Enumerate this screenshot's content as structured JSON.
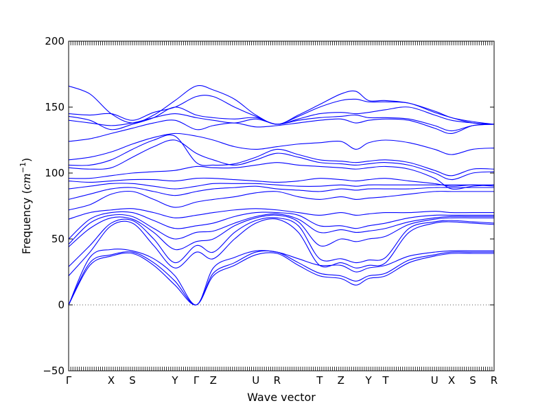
{
  "chart_data": {
    "type": "line",
    "title": "",
    "xlabel": "Wave vector",
    "ylabel_text": "Frequency (",
    "ylabel_unit": "cm",
    "ylabel_exp": "−1",
    "ylabel_close": ")",
    "ylim": [
      -50,
      200
    ],
    "yticks": [
      -50,
      0,
      50,
      100,
      150,
      200
    ],
    "xlim": [
      0,
      20
    ],
    "xticks": [
      {
        "x": 0,
        "label": "Γ"
      },
      {
        "x": 2,
        "label": "X"
      },
      {
        "x": 3,
        "label": "S"
      },
      {
        "x": 5,
        "label": "Y"
      },
      {
        "x": 6,
        "label": "Γ"
      },
      {
        "x": 6.8,
        "label": "Z"
      },
      {
        "x": 8.8,
        "label": "U"
      },
      {
        "x": 9.8,
        "label": "R"
      },
      {
        "x": 11.8,
        "label": "T"
      },
      {
        "x": 12.8,
        "label": "Z"
      },
      {
        "x": 14.1,
        "label": "Y"
      },
      {
        "x": 14.9,
        "label": "T"
      },
      {
        "x": 17.2,
        "label": "U"
      },
      {
        "x": 18,
        "label": "X"
      },
      {
        "x": 19,
        "label": "S"
      },
      {
        "x": 20,
        "label": "R"
      }
    ],
    "zero_line": true,
    "series_color": "#0000ff",
    "zero_line_color": "#555555",
    "series": [
      {
        "x": [
          0,
          1,
          2,
          3,
          4,
          5,
          6,
          6.8,
          7.8,
          8.8,
          9.8,
          10.8,
          11.8,
          12.8,
          13.5,
          14.1,
          14.9,
          16,
          17.2,
          18,
          19,
          20
        ],
        "values": [
          0,
          30,
          37,
          39,
          30,
          15,
          0,
          22,
          30,
          38,
          39,
          30,
          22,
          20,
          15,
          20,
          22,
          32,
          37,
          39,
          39,
          39
        ]
      },
      {
        "x": [
          0,
          1,
          2,
          3,
          4,
          5,
          6,
          6.8,
          7.8,
          8.8,
          9.8,
          10.8,
          11.8,
          12.8,
          13.5,
          14.1,
          14.9,
          16,
          17.2,
          18,
          19,
          20
        ],
        "values": [
          0,
          32,
          38,
          40,
          32,
          18,
          0,
          24,
          32,
          40,
          40,
          32,
          24,
          22,
          18,
          22,
          24,
          34,
          38,
          40,
          40,
          40
        ]
      },
      {
        "x": [
          0,
          1,
          2,
          3,
          4,
          5,
          6,
          6.8,
          7.8,
          8.8,
          9.8,
          10.8,
          11.8,
          12.8,
          13.5,
          14.1,
          14.9,
          16,
          17.2,
          18,
          19,
          20
        ],
        "values": [
          0,
          36,
          42,
          41,
          35,
          22,
          0,
          28,
          36,
          41,
          40,
          35,
          30,
          30,
          25,
          28,
          30,
          37,
          40,
          41,
          41,
          41
        ]
      },
      {
        "x": [
          0,
          1,
          2,
          3,
          4,
          5,
          6,
          6.8,
          7.8,
          8.8,
          9.8,
          10.8,
          11.8,
          12.8,
          13.5,
          14.1,
          14.9,
          16,
          17.2,
          18,
          19,
          20
        ],
        "values": [
          22,
          40,
          60,
          62,
          45,
          28,
          40,
          35,
          50,
          62,
          65,
          55,
          30,
          32,
          28,
          30,
          32,
          55,
          62,
          63,
          62,
          61
        ]
      },
      {
        "x": [
          0,
          1,
          2,
          3,
          4,
          5,
          6,
          6.8,
          7.8,
          8.8,
          9.8,
          10.8,
          11.8,
          12.8,
          13.5,
          14.1,
          14.9,
          16,
          17.2,
          18,
          19,
          20
        ],
        "values": [
          29,
          45,
          62,
          64,
          50,
          32,
          45,
          40,
          55,
          64,
          66,
          60,
          35,
          35,
          32,
          34,
          36,
          58,
          63,
          64,
          63,
          62
        ]
      },
      {
        "x": [
          0,
          1,
          2,
          3,
          4,
          5,
          6,
          6.8,
          7.8,
          8.8,
          9.8,
          10.8,
          11.8,
          12.8,
          13.5,
          14.1,
          14.9,
          16,
          17.2,
          18,
          19,
          20
        ],
        "values": [
          44,
          58,
          66,
          65,
          55,
          42,
          48,
          50,
          60,
          66,
          68,
          63,
          45,
          50,
          48,
          50,
          52,
          61,
          65,
          66,
          66,
          66
        ]
      },
      {
        "x": [
          0,
          1,
          2,
          3,
          4,
          5,
          6,
          6.8,
          7.8,
          8.8,
          9.8,
          10.8,
          11.8,
          12.8,
          13.5,
          14.1,
          14.9,
          16,
          17.2,
          18,
          19,
          20
        ],
        "values": [
          46,
          62,
          68,
          67,
          58,
          50,
          55,
          56,
          62,
          67,
          69,
          65,
          55,
          57,
          55,
          56,
          58,
          63,
          66,
          67,
          67,
          67
        ]
      },
      {
        "x": [
          0,
          1,
          2,
          3,
          4,
          5,
          6,
          6.8,
          7.8,
          8.8,
          9.8,
          10.8,
          11.8,
          12.8,
          13.5,
          14.1,
          14.9,
          16,
          17.2,
          18,
          19,
          20
        ],
        "values": [
          50,
          65,
          70,
          70,
          64,
          58,
          60,
          62,
          67,
          70,
          70,
          68,
          60,
          60,
          58,
          60,
          62,
          66,
          68,
          68,
          68,
          68
        ]
      },
      {
        "x": [
          0,
          1,
          2,
          3,
          4,
          5,
          6,
          6.8,
          7.8,
          8.8,
          9.8,
          10.8,
          11.8,
          12.8,
          13.5,
          14.1,
          14.9,
          16,
          17.2,
          18,
          19,
          20
        ],
        "values": [
          65,
          70,
          72,
          73,
          70,
          66,
          68,
          70,
          72,
          73,
          72,
          70,
          68,
          70,
          68,
          69,
          70,
          70,
          71,
          70,
          70,
          70
        ]
      },
      {
        "x": [
          0,
          1,
          2,
          3,
          4,
          5,
          6,
          6.8,
          7.8,
          8.8,
          9.8,
          10.8,
          11.8,
          12.8,
          13.5,
          14.1,
          14.9,
          16,
          17.2,
          18,
          19,
          20
        ],
        "values": [
          72,
          76,
          84,
          86,
          80,
          74,
          78,
          80,
          82,
          85,
          86,
          82,
          80,
          82,
          80,
          81,
          82,
          84,
          86,
          86,
          86,
          86
        ]
      },
      {
        "x": [
          0,
          1,
          2,
          3,
          4,
          5,
          6,
          6.8,
          7.8,
          8.8,
          9.8,
          10.8,
          11.8,
          12.8,
          13.5,
          14.1,
          14.9,
          16,
          17.2,
          18,
          19,
          20
        ],
        "values": [
          80,
          84,
          88,
          89,
          86,
          83,
          86,
          88,
          89,
          90,
          88,
          87,
          86,
          88,
          87,
          88,
          88,
          88,
          89,
          89,
          89,
          89
        ]
      },
      {
        "x": [
          0,
          1,
          2,
          3,
          4,
          5,
          6,
          6.8,
          7.8,
          8.8,
          9.8,
          10.8,
          11.8,
          12.8,
          13.5,
          14.1,
          14.9,
          16,
          17.2,
          18,
          19,
          20
        ],
        "values": [
          88,
          90,
          92,
          92,
          90,
          88,
          90,
          92,
          92,
          92,
          91,
          90,
          90,
          91,
          90,
          91,
          91,
          91,
          91,
          91,
          91,
          91
        ]
      },
      {
        "x": [
          0,
          1,
          2,
          3,
          4,
          5,
          6,
          6.8,
          7.8,
          8.8,
          9.8,
          10.8,
          11.8,
          12.8,
          13.5,
          14.1,
          14.9,
          16,
          17.2,
          18,
          19,
          20
        ],
        "values": [
          94,
          93,
          94,
          95,
          95,
          94,
          96,
          96,
          95,
          94,
          93,
          94,
          96,
          95,
          94,
          95,
          96,
          94,
          92,
          90,
          91,
          90
        ]
      },
      {
        "x": [
          0,
          1,
          2,
          3,
          4,
          5,
          6,
          6.8,
          7.8,
          8.8,
          9.8,
          10.8,
          11.8,
          12.8,
          13.5,
          14.1,
          14.9,
          16,
          17.2,
          18,
          19,
          20
        ],
        "values": [
          96,
          96,
          98,
          100,
          101,
          102,
          105,
          104,
          104,
          106,
          108,
          106,
          105,
          104,
          103,
          104,
          105,
          103,
          96,
          88,
          90,
          91
        ]
      },
      {
        "x": [
          0,
          1,
          2,
          3,
          4,
          5,
          6,
          6.8,
          7.8,
          8.8,
          9.8,
          10.8,
          11.8,
          12.8,
          13.5,
          14.1,
          14.9,
          16,
          17.2,
          18,
          19,
          20
        ],
        "values": [
          104,
          103,
          104,
          112,
          120,
          125,
          115,
          110,
          106,
          110,
          115,
          112,
          108,
          107,
          106,
          107,
          108,
          106,
          100,
          95,
          100,
          101
        ]
      },
      {
        "x": [
          0,
          1,
          2,
          3,
          4,
          5,
          6,
          6.8,
          7.8,
          8.8,
          9.8,
          10.8,
          11.8,
          12.8,
          13.5,
          14.1,
          14.9,
          16,
          17.2,
          18,
          19,
          20
        ],
        "values": [
          106,
          106,
          110,
          118,
          125,
          128,
          108,
          106,
          107,
          112,
          118,
          114,
          110,
          109,
          108,
          109,
          110,
          108,
          102,
          98,
          103,
          103
        ]
      },
      {
        "x": [
          0,
          1,
          2,
          3,
          4,
          5,
          6,
          6.8,
          7.8,
          8.8,
          9.8,
          10.8,
          11.8,
          12.8,
          13.5,
          14.1,
          14.9,
          16,
          17.2,
          18,
          19,
          20
        ],
        "values": [
          110,
          112,
          116,
          122,
          127,
          130,
          128,
          125,
          120,
          118,
          120,
          122,
          123,
          124,
          118,
          123,
          125,
          123,
          118,
          114,
          118,
          119
        ]
      },
      {
        "x": [
          0,
          1,
          2,
          3,
          4,
          5,
          6,
          6.8,
          7.8,
          8.8,
          9.8,
          10.8,
          11.8,
          12.8,
          13.5,
          14.1,
          14.9,
          16,
          17.2,
          18,
          19,
          20
        ],
        "values": [
          124,
          126,
          130,
          134,
          138,
          140,
          133,
          136,
          138,
          135,
          136,
          138,
          140,
          141,
          138,
          140,
          141,
          140,
          134,
          130,
          136,
          137
        ]
      },
      {
        "x": [
          0,
          1,
          2,
          3,
          4,
          5,
          6,
          6.8,
          7.8,
          8.8,
          9.8,
          10.8,
          11.8,
          12.8,
          13.5,
          14.1,
          14.9,
          16,
          17.2,
          18,
          19,
          20
        ],
        "values": [
          140,
          138,
          136,
          138,
          142,
          145,
          142,
          140,
          138,
          141,
          137,
          140,
          142,
          143,
          144,
          142,
          142,
          141,
          136,
          132,
          136,
          137
        ]
      },
      {
        "x": [
          0,
          1,
          2,
          3,
          4,
          5,
          6,
          6.8,
          7.8,
          8.8,
          9.8,
          10.8,
          11.8,
          12.8,
          13.5,
          14.1,
          14.9,
          16,
          17.2,
          18,
          19,
          20
        ],
        "values": [
          143,
          140,
          133,
          137,
          142,
          150,
          144,
          142,
          141,
          142,
          137,
          141,
          145,
          146,
          145,
          146,
          148,
          150,
          144,
          140,
          138,
          137
        ]
      },
      {
        "x": [
          0,
          1,
          2,
          3,
          4,
          5,
          6,
          6.8,
          7.8,
          8.8,
          9.8,
          10.8,
          11.8,
          12.8,
          13.5,
          14.1,
          14.9,
          16,
          17.2,
          18,
          19,
          20
        ],
        "values": [
          145,
          144,
          145,
          140,
          146,
          150,
          158,
          158,
          150,
          143,
          137,
          143,
          150,
          155,
          156,
          154,
          154,
          153,
          146,
          142,
          138,
          137
        ]
      },
      {
        "x": [
          0,
          1,
          2,
          3,
          4,
          5,
          6,
          6.8,
          7.8,
          8.8,
          9.8,
          10.8,
          11.8,
          12.8,
          13.5,
          14.1,
          14.9,
          16,
          17.2,
          18,
          19,
          20
        ],
        "values": [
          166,
          160,
          145,
          138,
          144,
          155,
          166,
          163,
          156,
          144,
          137,
          144,
          152,
          160,
          162,
          155,
          155,
          153,
          147,
          142,
          139,
          137
        ]
      }
    ]
  }
}
